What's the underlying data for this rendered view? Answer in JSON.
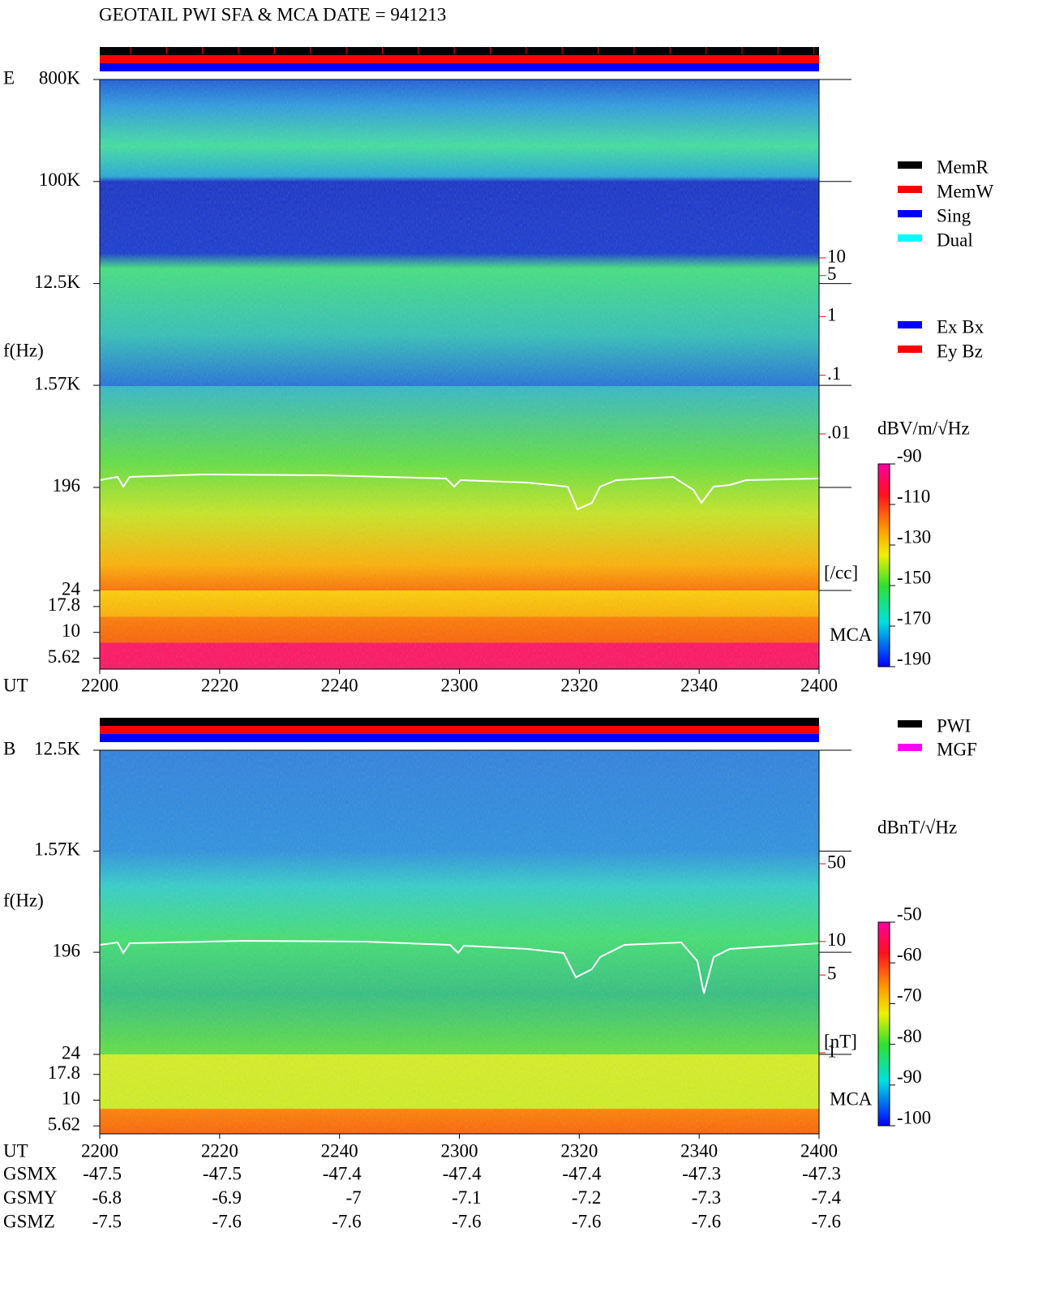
{
  "title": "GEOTAIL  PWI SFA & MCA   DATE = 941213",
  "status_legend": [
    {
      "name": "MemR",
      "color": "#000000"
    },
    {
      "name": "MemW",
      "color": "#ff0000"
    },
    {
      "name": "Sing",
      "color": "#0000ff"
    },
    {
      "name": "Dual",
      "color": "#00ffff"
    }
  ],
  "antenna_legend": [
    {
      "name": "Ex Bx",
      "color": "#0000ff"
    },
    {
      "name": "Ey Bz",
      "color": "#ff0000"
    }
  ],
  "source_legend": [
    {
      "name": "PWI",
      "color": "#000000"
    },
    {
      "name": "MGF",
      "color": "#ff00ff"
    }
  ],
  "chart_data": [
    {
      "type": "spectrogram",
      "component": "E",
      "ylabel": "f(Hz)",
      "xlabel": "UT",
      "yscale": "log",
      "ylim": [
        24,
        800000
      ],
      "yticks": [
        {
          "value": 800000,
          "label": "800K"
        },
        {
          "value": 100000,
          "label": "100K"
        },
        {
          "value": 12500,
          "label": "12.5K"
        },
        {
          "value": 1570,
          "label": "1.57K"
        },
        196,
        24
      ],
      "mca_label": "MCA",
      "mca_ylim": [
        4.4,
        25.5
      ],
      "mca_yticks": [
        17.8,
        10,
        5.62
      ],
      "x": [
        "2200",
        "2220",
        "2240",
        "2300",
        "2320",
        "2340",
        "2400"
      ],
      "colorbar": {
        "label": "dBV/m/√Hz",
        "lim": [
          -190,
          -90
        ],
        "ticks": [
          -90,
          -110,
          -130,
          -150,
          -170,
          -190
        ]
      },
      "right_axis": {
        "label": "[/cc]",
        "color": "#ff0000",
        "scale": "log",
        "lim": [
          0.01,
          10
        ],
        "ticks": [
          10,
          5,
          1,
          {
            "value": 0.1,
            "label": ".1"
          },
          {
            "value": 0.01,
            "label": ".01"
          }
        ]
      }
    },
    {
      "type": "spectrogram",
      "component": "B",
      "ylabel": "f(Hz)",
      "xlabel": "UT",
      "yscale": "log",
      "ylim": [
        24,
        12500
      ],
      "yticks": [
        {
          "value": 12500,
          "label": "12.5K"
        },
        {
          "value": 1570,
          "label": "1.57K"
        },
        196,
        24
      ],
      "mca_label": "MCA",
      "mca_ylim": [
        4.7,
        27.9
      ],
      "mca_yticks": [
        17.8,
        10,
        5.62
      ],
      "x": [
        "2200",
        "2220",
        "2240",
        "2300",
        "2320",
        "2340",
        "2400"
      ],
      "colorbar": {
        "label": "dBnT/√Hz",
        "lim": [
          -100,
          -50
        ],
        "ticks": [
          -50,
          -60,
          -70,
          -80,
          -90,
          -100
        ]
      },
      "right_axis": {
        "label": "[nT]",
        "color": "#ff0000",
        "scale": "log",
        "lim": [
          1,
          50
        ],
        "ticks": [
          50,
          10,
          5,
          1
        ]
      }
    }
  ],
  "orbit": {
    "rows": [
      {
        "label": "GSMX",
        "values": [
          -47.5,
          -47.5,
          -47.4,
          -47.4,
          -47.4,
          -47.3,
          -47.3
        ]
      },
      {
        "label": "GSMY",
        "values": [
          -6.8,
          -6.9,
          -7.0,
          -7.1,
          -7.2,
          -7.3,
          -7.4
        ]
      },
      {
        "label": "GSMZ",
        "values": [
          -7.5,
          -7.6,
          -7.6,
          -7.6,
          -7.6,
          -7.6,
          -7.6
        ]
      }
    ]
  }
}
